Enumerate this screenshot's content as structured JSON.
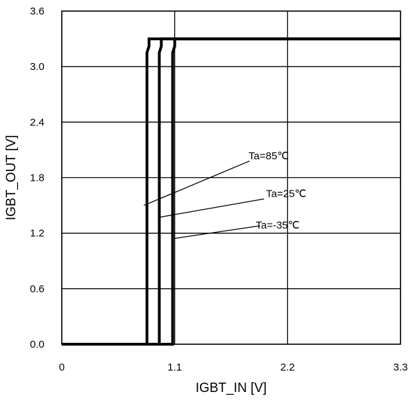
{
  "chart_data": {
    "type": "line",
    "title": "",
    "xlabel": "IGBT_IN [V]",
    "ylabel": "IGBT_OUT [V]",
    "xlim": [
      0,
      3.3
    ],
    "ylim": [
      0,
      3.6
    ],
    "x_ticks": [
      "0",
      "1.1",
      "2.2",
      "3.3"
    ],
    "y_ticks": [
      "0.0",
      "0.6",
      "1.2",
      "1.8",
      "2.4",
      "3.0",
      "3.6"
    ],
    "x_tick_values": [
      0,
      1.1,
      2.2,
      3.3
    ],
    "y_tick_values": [
      0,
      0.6,
      1.2,
      1.8,
      2.4,
      3.0,
      3.6
    ],
    "grid": true,
    "legend": "none",
    "series": [
      {
        "name": "Ta=85℃",
        "x": [
          0,
          0.83,
          0.83,
          0.85,
          0.85,
          3.3
        ],
        "y": [
          0,
          0,
          3.15,
          3.22,
          3.3,
          3.3
        ]
      },
      {
        "name": "Ta=25℃",
        "x": [
          0,
          0.95,
          0.95,
          0.97,
          0.97,
          3.3
        ],
        "y": [
          0,
          0,
          3.15,
          3.22,
          3.3,
          3.3
        ]
      },
      {
        "name": "Ta=-35℃",
        "x": [
          0,
          1.08,
          1.08,
          1.1,
          1.1,
          3.3
        ],
        "y": [
          0,
          0,
          3.15,
          3.22,
          3.3,
          3.3
        ]
      }
    ],
    "annotations": [
      {
        "text": "Ta=85℃",
        "text_x": 1.82,
        "text_y": 2.0,
        "arrow_from": [
          1.83,
          1.98
        ],
        "arrow_to": [
          0.8,
          1.5
        ]
      },
      {
        "text": "Ta=25℃",
        "text_x": 1.99,
        "text_y": 1.59,
        "arrow_from": [
          1.97,
          1.57
        ],
        "arrow_to": [
          0.94,
          1.37
        ]
      },
      {
        "text": "Ta=-35℃",
        "text_x": 1.89,
        "text_y": 1.25,
        "arrow_from": [
          1.93,
          1.28
        ],
        "arrow_to": [
          1.08,
          1.14
        ]
      }
    ]
  }
}
